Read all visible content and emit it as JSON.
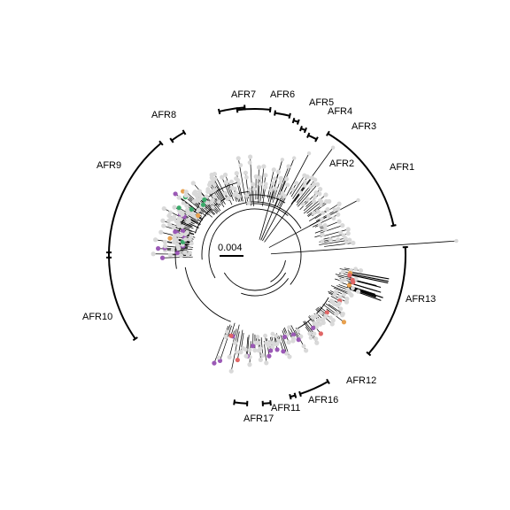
{
  "scale": {
    "label": "0.004"
  },
  "clades": [
    {
      "label": "AFR1"
    },
    {
      "label": "AFR2"
    },
    {
      "label": "AFR3"
    },
    {
      "label": "AFR4"
    },
    {
      "label": "AFR5"
    },
    {
      "label": "AFR6"
    },
    {
      "label": "AFR7"
    },
    {
      "label": "AFR8"
    },
    {
      "label": "AFR9"
    },
    {
      "label": "AFR10"
    },
    {
      "label": "AFR11"
    },
    {
      "label": "AFR12"
    },
    {
      "label": "AFR13"
    },
    {
      "label": "AFR16"
    },
    {
      "label": "AFR17"
    }
  ],
  "colors": {
    "tip_default": "#d9d9d9",
    "purple": "#9b59b6",
    "red": "#e06666",
    "orange": "#e8a14f",
    "green": "#3aaa6a",
    "line": "#000000"
  }
}
